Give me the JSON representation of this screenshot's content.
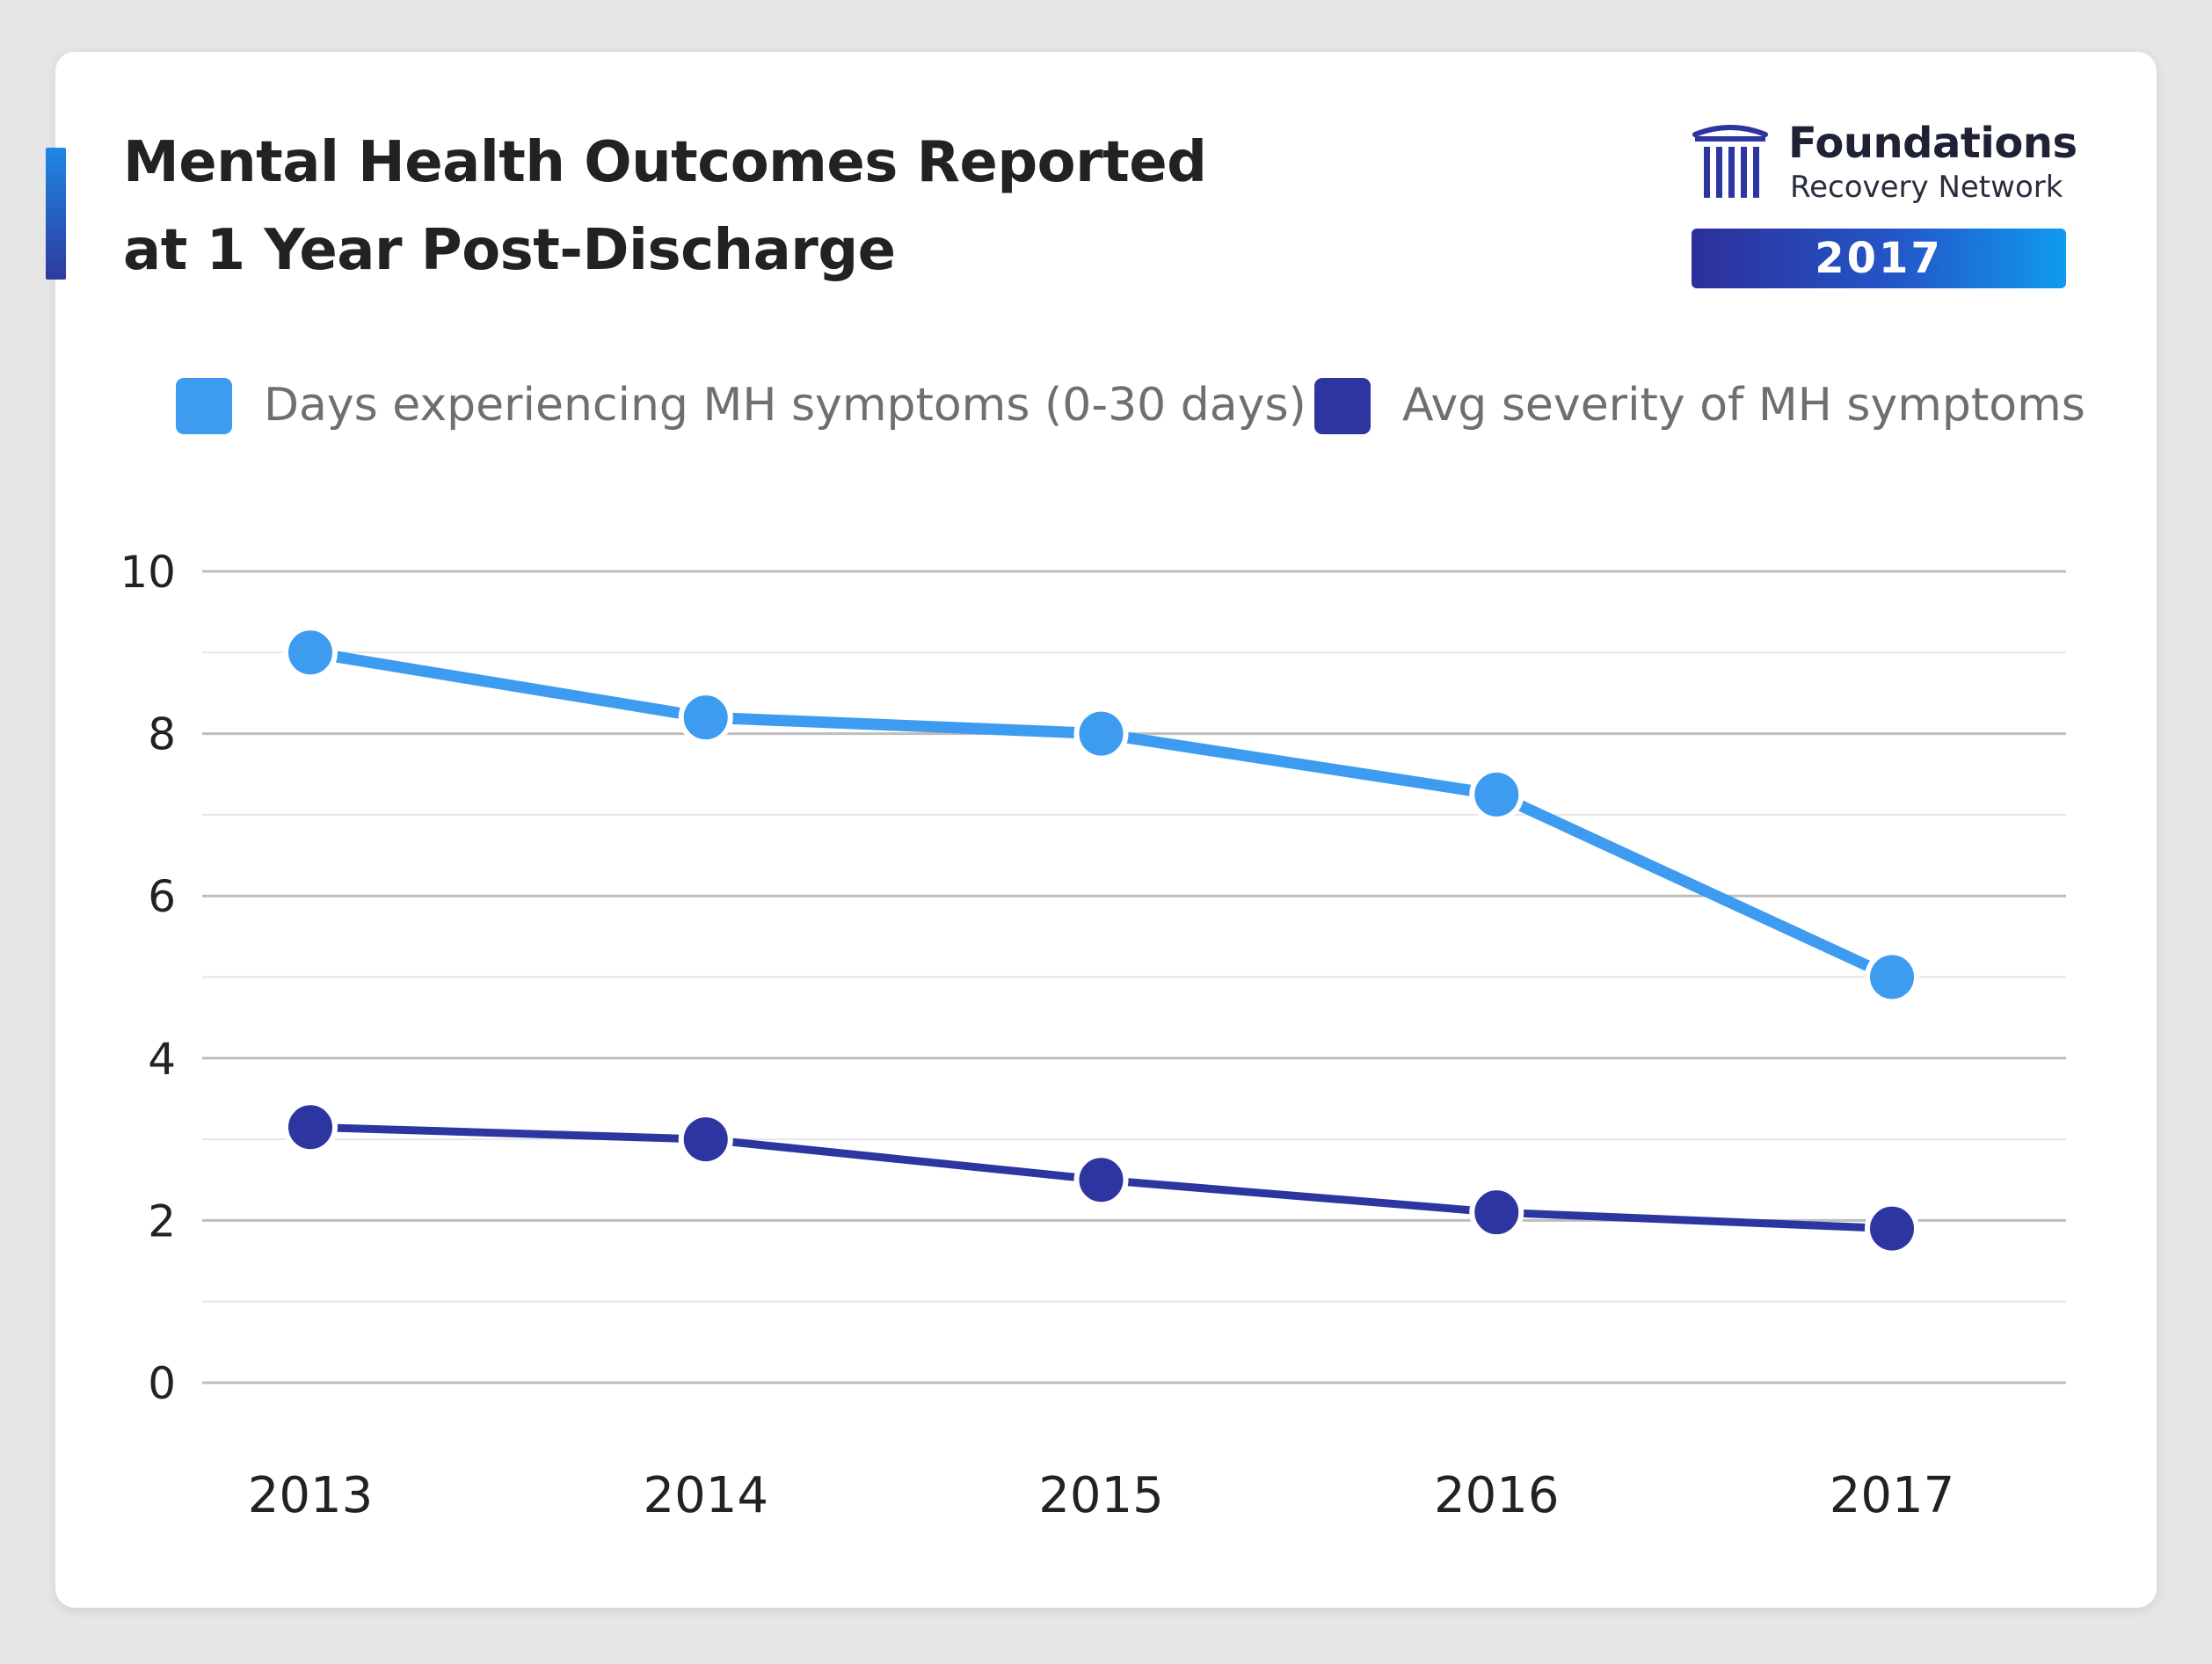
{
  "title": {
    "line1": "Mental Health Outcomes Reported",
    "line2": "at 1 Year Post-Discharge"
  },
  "brand": {
    "name": "Foundations",
    "subtitle": "Recovery Network",
    "year_badge": "2017",
    "logo_icon": "column-logo-icon"
  },
  "colors": {
    "series_days": "#3d9cf0",
    "series_severity": "#2c35a0",
    "grid_major": "#bdbdbd",
    "grid_minor": "#e6e6e6"
  },
  "legend": [
    {
      "label": "Days experiencing MH symptoms (0-30 days)",
      "color": "#3d9cf0"
    },
    {
      "label": "Avg severity of MH symptoms",
      "color": "#2c35a0"
    }
  ],
  "chart_data": {
    "type": "line",
    "title": "Mental Health Outcomes Reported at 1 Year Post-Discharge",
    "xlabel": "",
    "ylabel": "",
    "categories": [
      "2013",
      "2014",
      "2015",
      "2016",
      "2017"
    ],
    "ylim": [
      0,
      10
    ],
    "yticks": [
      "0",
      "2",
      "4",
      "6",
      "8",
      "10"
    ],
    "grid": true,
    "legend_position": "top",
    "series": [
      {
        "name": "Days experiencing MH symptoms (0-30 days)",
        "values": [
          9.0,
          8.2,
          8.0,
          7.25,
          5.0
        ]
      },
      {
        "name": "Avg severity of MH symptoms",
        "values": [
          3.15,
          3.0,
          2.5,
          2.1,
          1.9
        ]
      }
    ]
  }
}
